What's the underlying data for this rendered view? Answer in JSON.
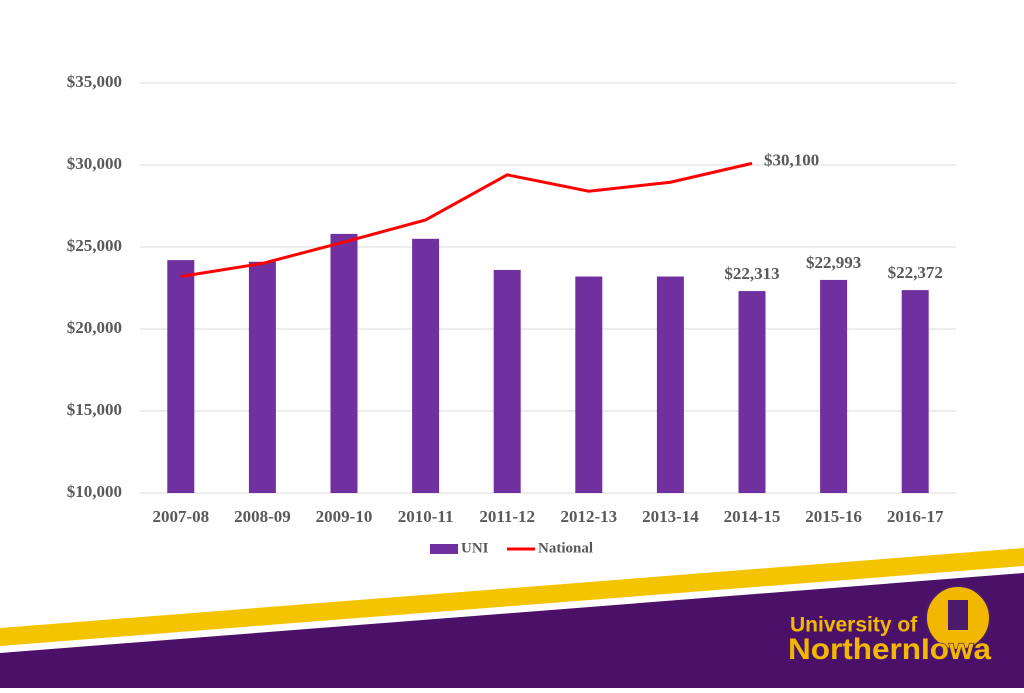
{
  "chart_data": {
    "type": "bar",
    "categories": [
      "2007-08",
      "2008-09",
      "2009-10",
      "2010-11",
      "2011-12",
      "2012-13",
      "2013-14",
      "2014-15",
      "2015-16",
      "2016-17"
    ],
    "series": [
      {
        "name": "UNI",
        "type": "bar",
        "color": "#7030a0",
        "values": [
          24200,
          24100,
          25800,
          25500,
          23600,
          23200,
          23200,
          22313,
          22993,
          22372
        ],
        "value_labels": [
          null,
          null,
          null,
          null,
          null,
          null,
          null,
          "$22,313",
          "$22,993",
          "$22,372"
        ]
      },
      {
        "name": "National",
        "type": "line",
        "color": "#ff0000",
        "values": [
          23200,
          24000,
          25300,
          26650,
          29400,
          28400,
          28950,
          30100,
          null,
          null
        ],
        "value_labels": [
          null,
          null,
          null,
          null,
          null,
          null,
          null,
          "$30,100",
          null,
          null
        ]
      }
    ],
    "ylim": [
      10000,
      35000
    ],
    "yticks": [
      {
        "value": 10000,
        "label": "$10,000"
      },
      {
        "value": 15000,
        "label": "$15,000"
      },
      {
        "value": 20000,
        "label": "$20,000"
      },
      {
        "value": 25000,
        "label": "$25,000"
      },
      {
        "value": 30000,
        "label": "$30,000"
      },
      {
        "value": 35000,
        "label": "$35,000"
      }
    ],
    "grid": true,
    "legend": "bottom"
  },
  "branding": {
    "line1": "University of",
    "line2": "NorthernIowa"
  }
}
